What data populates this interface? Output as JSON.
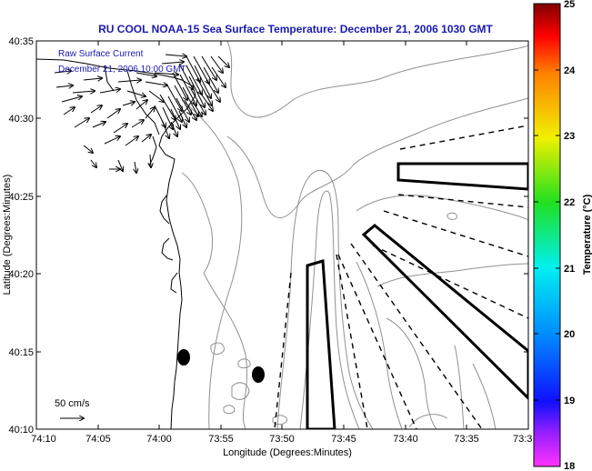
{
  "title": "RU COOL  NOAA-15  Sea Surface Temperature:  December 21, 2006 1030 GMT",
  "annotation_line1": "Raw Surface Current",
  "annotation_line2": "December 21, 2006 10:00 GMT",
  "scale_label": "50 cm/s",
  "xlabel": "Longitude (Degrees:Minutes)",
  "ylabel": "Latitude (Degrees:Minutes)",
  "x_ticks": [
    "74:10",
    "74:05",
    "74:00",
    "73:55",
    "73:50",
    "73:45",
    "73:40",
    "73:35",
    "73:3"
  ],
  "y_ticks": [
    "40:35",
    "40:30",
    "40:25",
    "40:20",
    "40:15",
    "40:10"
  ],
  "colorbar": {
    "label": "Temperature (°C)",
    "min": 18,
    "max": 25,
    "ticks": [
      "25",
      "24",
      "23",
      "22",
      "21",
      "20",
      "19",
      "18"
    ],
    "colors": [
      "#8b0000",
      "#ff0000",
      "#ff8c00",
      "#ffff00",
      "#00e000",
      "#00ffff",
      "#0000ff",
      "#ff00ff"
    ]
  }
}
